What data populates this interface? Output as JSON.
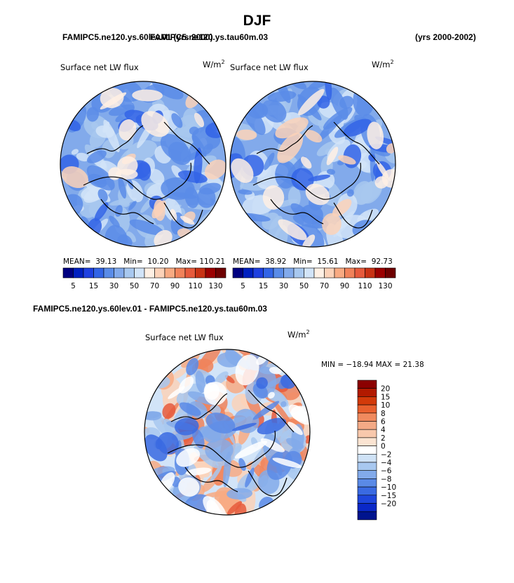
{
  "season_title": "DJF",
  "header": {
    "case_overlap_text": "FAMIPC5.ne120.ys.60lev.01 (yrs 2000)",
    "case_right_name": "FAMIPC5.ne120.ys.tau60m.03",
    "years_label": "(yrs 2000-2002)"
  },
  "diff_title": "FAMIPC5.ne120.ys.60lev.01 - FAMIPC5.ne120.ys.tau60m.03",
  "colors": {
    "scale": [
      "#000080",
      "#0020c0",
      "#1e40e0",
      "#3264e6",
      "#5a8ce8",
      "#82aaeb",
      "#a8c8ef",
      "#d2e4f8",
      "#fff0e4",
      "#fcd2b8",
      "#f8aa82",
      "#f0825a",
      "#e65a3c",
      "#c83214",
      "#9b0000",
      "#6e0000"
    ]
  },
  "chart_data": [
    {
      "type": "heatmap",
      "projection": "north-polar-stereographic",
      "title": "Surface net LW flux",
      "units": "W/m",
      "units_exponent": "2",
      "mean_label": "MEAN=",
      "mean": "39.13",
      "min_label": "Min=",
      "min": "10.20",
      "max_label": "Max=",
      "max": "110.21",
      "legend": {
        "orientation": "horizontal",
        "levels": [
          "5",
          "10",
          "15",
          "20",
          "30",
          "40",
          "50",
          "60",
          "70",
          "80",
          "90",
          "100",
          "110",
          "120",
          "130"
        ],
        "shown_labels": [
          "5",
          "15",
          "30",
          "50",
          "70",
          "90",
          "110",
          "130"
        ]
      }
    },
    {
      "type": "heatmap",
      "projection": "north-polar-stereographic",
      "title": "Surface net LW flux",
      "units": "W/m",
      "units_exponent": "2",
      "mean_label": "MEAN=",
      "mean": "38.92",
      "min_label": "Min=",
      "min": "15.61",
      "max_label": "Max=",
      "max": "92.73",
      "legend": {
        "orientation": "horizontal",
        "levels": [
          "5",
          "10",
          "15",
          "20",
          "30",
          "40",
          "50",
          "60",
          "70",
          "80",
          "90",
          "100",
          "110",
          "120",
          "130"
        ],
        "shown_labels": [
          "5",
          "15",
          "30",
          "50",
          "70",
          "90",
          "110",
          "130"
        ]
      }
    },
    {
      "type": "heatmap",
      "projection": "north-polar-stereographic",
      "title": "Surface net LW flux",
      "units": "W/m",
      "units_exponent": "2",
      "minmax_text": "MIN = −18.94 MAX =  21.38",
      "min": -18.94,
      "max": 21.38,
      "legend": {
        "orientation": "vertical",
        "levels": [
          "20",
          "15",
          "10",
          "8",
          "6",
          "4",
          "2",
          "0",
          "−2",
          "−4",
          "−6",
          "−8",
          "−10",
          "−15",
          "−20"
        ],
        "colors": [
          "#8b0000",
          "#b21a00",
          "#d23a0a",
          "#e8602e",
          "#f08a5e",
          "#f4aa86",
          "#f8c8ac",
          "#fbe4d2",
          "#ffffff",
          "#cfe2f6",
          "#a8c8f0",
          "#82aaea",
          "#5a8ae6",
          "#3a6ae2",
          "#1e46dc",
          "#0a28c8",
          "#00148e"
        ]
      }
    }
  ]
}
